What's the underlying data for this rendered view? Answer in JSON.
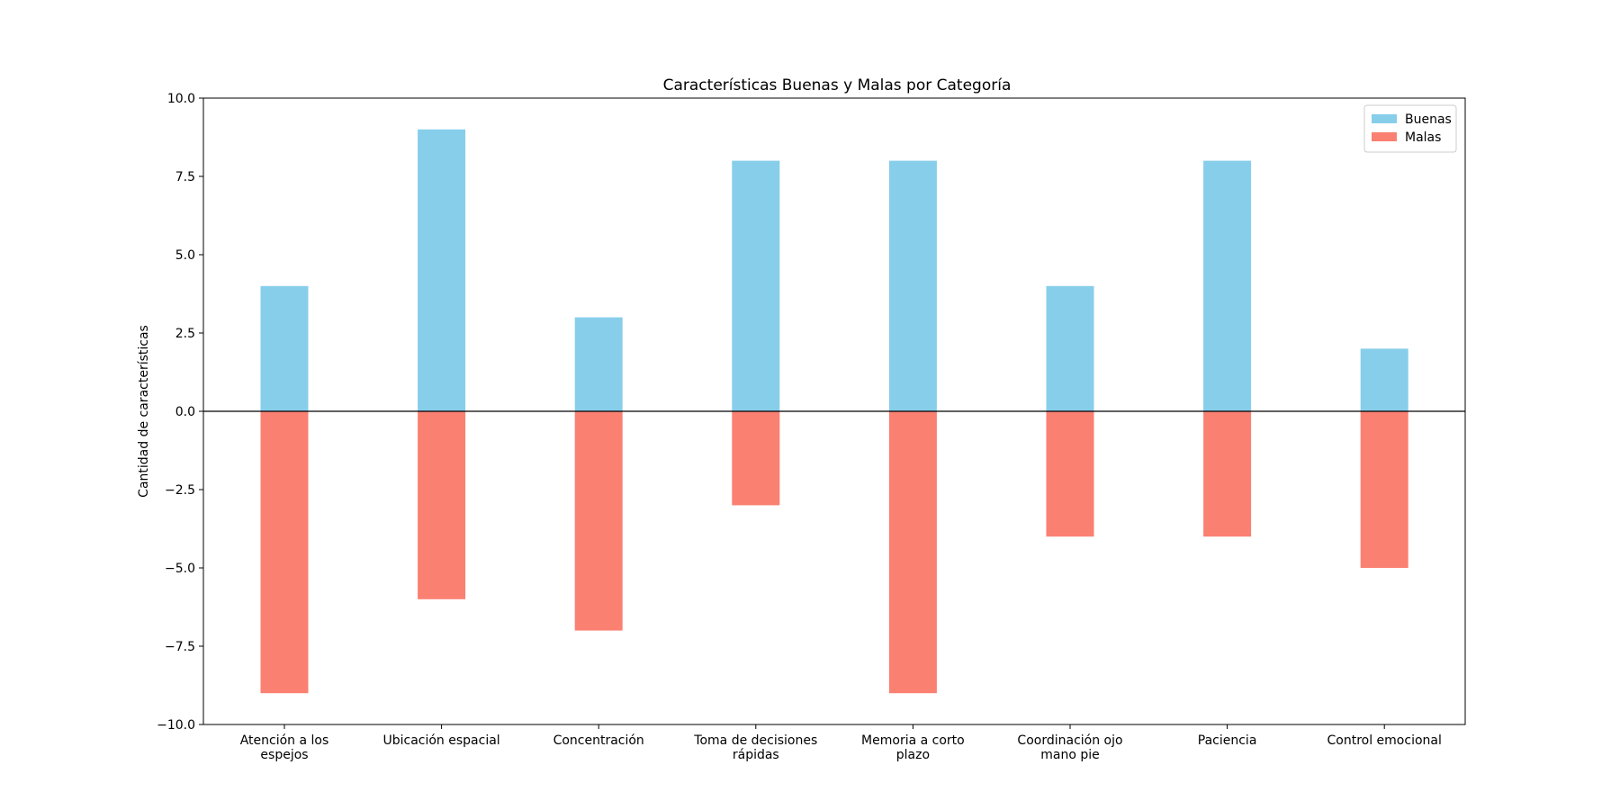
{
  "chart_data": {
    "type": "bar",
    "title": "Características Buenas y Malas por Categoría",
    "xlabel": "",
    "ylabel": "Cantidad de características",
    "ylim": [
      -10,
      10
    ],
    "yticks": [
      -10,
      -7.5,
      -5,
      -2.5,
      0,
      2.5,
      5,
      7.5,
      10
    ],
    "ytick_labels": [
      "−10.0",
      "−7.5",
      "−5.0",
      "−2.5",
      "0.0",
      "2.5",
      "5.0",
      "7.5",
      "10.0"
    ],
    "categories": [
      [
        "Atención a los",
        "espejos"
      ],
      [
        "Ubicación espacial"
      ],
      [
        "Concentración"
      ],
      [
        "Toma de decisiones",
        "rápidas"
      ],
      [
        "Memoria a corto",
        "plazo"
      ],
      [
        "Coordinación ojo",
        "mano pie"
      ],
      [
        "Paciencia"
      ],
      [
        "Control emocional"
      ]
    ],
    "series": [
      {
        "name": "Buenas",
        "color": "#87ceeb",
        "values": [
          4,
          9,
          3,
          8,
          8,
          4,
          8,
          2
        ]
      },
      {
        "name": "Malas",
        "color": "#fa8072",
        "values": [
          -9,
          -6,
          -7,
          -3,
          -9,
          -4,
          -4,
          -5
        ]
      }
    ],
    "zero_line": true,
    "grid": false,
    "legend_position": "top-right"
  }
}
